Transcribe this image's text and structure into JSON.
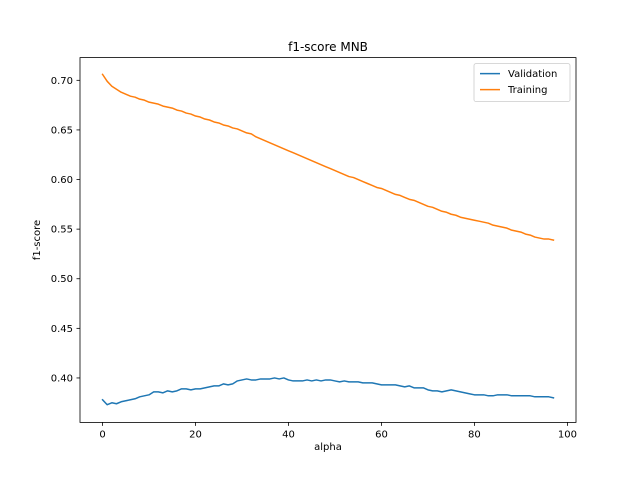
{
  "chart_data": {
    "type": "line",
    "title": "f1-score MNB",
    "xlabel": "alpha",
    "ylabel": "f1-score",
    "xlim": [
      -4.85,
      101.85
    ],
    "ylim": [
      0.3552,
      0.7229
    ],
    "xticks": [
      0,
      20,
      40,
      60,
      80,
      100
    ],
    "yticks": [
      0.4,
      0.45,
      0.5,
      0.55,
      0.6,
      0.65,
      0.7
    ],
    "xtick_labels": [
      "0",
      "20",
      "40",
      "60",
      "80",
      "100"
    ],
    "ytick_labels": [
      "0.40",
      "0.45",
      "0.50",
      "0.55",
      "0.60",
      "0.65",
      "0.70"
    ],
    "grid": false,
    "legend_position": "top-right",
    "series": [
      {
        "name": "Validation",
        "color": "#1f77b4",
        "x": [
          0,
          1,
          2,
          3,
          4,
          5,
          6,
          7,
          8,
          9,
          10,
          11,
          12,
          13,
          14,
          15,
          16,
          17,
          18,
          19,
          20,
          21,
          22,
          23,
          24,
          25,
          26,
          27,
          28,
          29,
          30,
          31,
          32,
          33,
          34,
          35,
          36,
          37,
          38,
          39,
          40,
          41,
          42,
          43,
          44,
          45,
          46,
          47,
          48,
          49,
          50,
          51,
          52,
          53,
          54,
          55,
          56,
          57,
          58,
          59,
          60,
          61,
          62,
          63,
          64,
          65,
          66,
          67,
          68,
          69,
          70,
          71,
          72,
          73,
          74,
          75,
          76,
          77,
          78,
          79,
          80,
          81,
          82,
          83,
          84,
          85,
          86,
          87,
          88,
          89,
          90,
          91,
          92,
          93,
          94,
          95,
          96,
          97
        ],
        "y": [
          0.378,
          0.373,
          0.375,
          0.374,
          0.376,
          0.377,
          0.378,
          0.379,
          0.381,
          0.382,
          0.383,
          0.386,
          0.386,
          0.385,
          0.387,
          0.386,
          0.387,
          0.389,
          0.389,
          0.388,
          0.389,
          0.389,
          0.39,
          0.391,
          0.392,
          0.392,
          0.394,
          0.393,
          0.394,
          0.397,
          0.398,
          0.399,
          0.398,
          0.398,
          0.399,
          0.399,
          0.399,
          0.4,
          0.399,
          0.4,
          0.398,
          0.397,
          0.397,
          0.397,
          0.398,
          0.397,
          0.398,
          0.397,
          0.398,
          0.398,
          0.397,
          0.396,
          0.397,
          0.396,
          0.396,
          0.396,
          0.395,
          0.395,
          0.395,
          0.394,
          0.393,
          0.393,
          0.393,
          0.393,
          0.392,
          0.391,
          0.392,
          0.39,
          0.39,
          0.39,
          0.388,
          0.387,
          0.387,
          0.386,
          0.387,
          0.388,
          0.387,
          0.386,
          0.385,
          0.384,
          0.383,
          0.383,
          0.383,
          0.382,
          0.382,
          0.383,
          0.383,
          0.383,
          0.382,
          0.382,
          0.382,
          0.382,
          0.382,
          0.381,
          0.381,
          0.381,
          0.381,
          0.38
        ]
      },
      {
        "name": "Training",
        "color": "#ff7f0e",
        "x": [
          0,
          1,
          2,
          3,
          4,
          5,
          6,
          7,
          8,
          9,
          10,
          11,
          12,
          13,
          14,
          15,
          16,
          17,
          18,
          19,
          20,
          21,
          22,
          23,
          24,
          25,
          26,
          27,
          28,
          29,
          30,
          31,
          32,
          33,
          34,
          35,
          36,
          37,
          38,
          39,
          40,
          41,
          42,
          43,
          44,
          45,
          46,
          47,
          48,
          49,
          50,
          51,
          52,
          53,
          54,
          55,
          56,
          57,
          58,
          59,
          60,
          61,
          62,
          63,
          64,
          65,
          66,
          67,
          68,
          69,
          70,
          71,
          72,
          73,
          74,
          75,
          76,
          77,
          78,
          79,
          80,
          81,
          82,
          83,
          84,
          85,
          86,
          87,
          88,
          89,
          90,
          91,
          92,
          93,
          94,
          95,
          96,
          97
        ],
        "y": [
          0.706,
          0.699,
          0.694,
          0.691,
          0.688,
          0.686,
          0.684,
          0.683,
          0.681,
          0.68,
          0.678,
          0.677,
          0.676,
          0.674,
          0.673,
          0.672,
          0.67,
          0.669,
          0.667,
          0.666,
          0.664,
          0.663,
          0.661,
          0.66,
          0.658,
          0.657,
          0.655,
          0.654,
          0.652,
          0.651,
          0.649,
          0.647,
          0.646,
          0.643,
          0.641,
          0.639,
          0.637,
          0.635,
          0.633,
          0.631,
          0.629,
          0.627,
          0.625,
          0.623,
          0.621,
          0.619,
          0.617,
          0.615,
          0.613,
          0.611,
          0.609,
          0.607,
          0.605,
          0.603,
          0.602,
          0.6,
          0.598,
          0.596,
          0.594,
          0.592,
          0.591,
          0.589,
          0.587,
          0.585,
          0.584,
          0.582,
          0.58,
          0.579,
          0.577,
          0.575,
          0.573,
          0.572,
          0.57,
          0.568,
          0.567,
          0.565,
          0.564,
          0.562,
          0.561,
          0.56,
          0.559,
          0.558,
          0.557,
          0.556,
          0.554,
          0.553,
          0.552,
          0.551,
          0.549,
          0.548,
          0.547,
          0.545,
          0.544,
          0.542,
          0.541,
          0.54,
          0.54,
          0.539
        ]
      }
    ]
  }
}
